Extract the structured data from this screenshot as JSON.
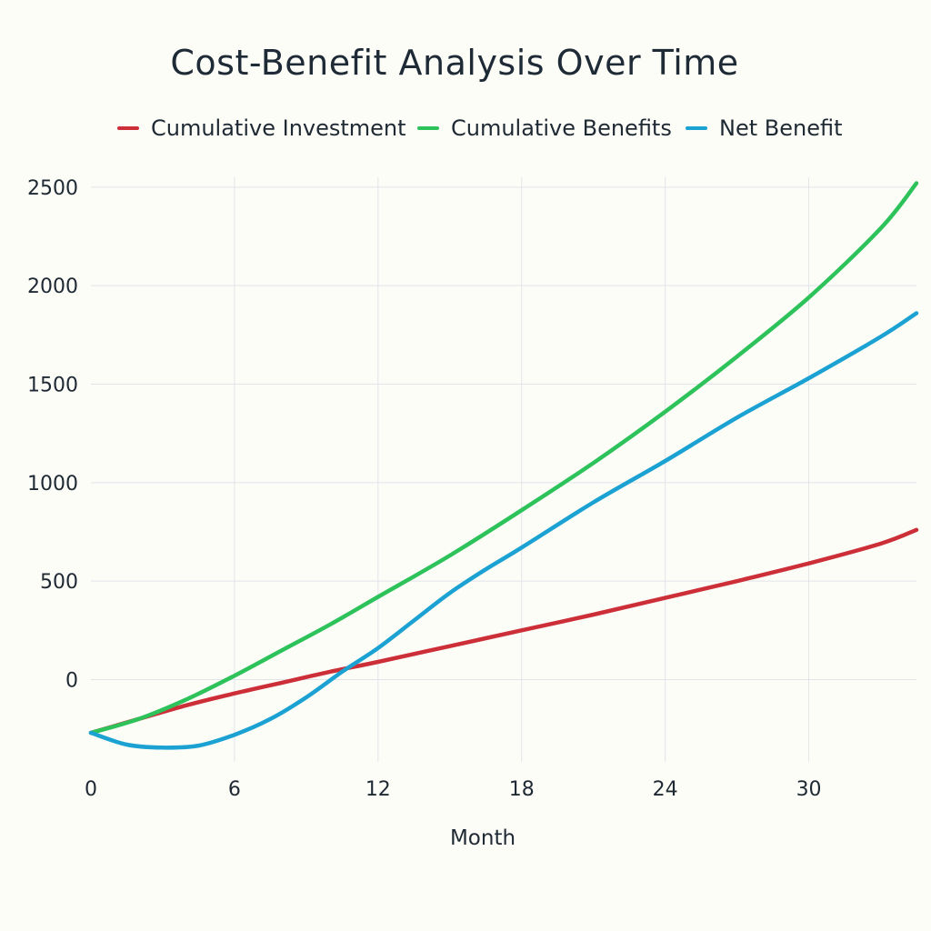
{
  "chart_data": {
    "type": "line",
    "title": "Cost-Benefit Analysis Over Time",
    "xlabel": "Month",
    "ylabel": "",
    "xlim": [
      0,
      34.5
    ],
    "ylim": [
      -450,
      2550
    ],
    "xticks": [
      0,
      6,
      12,
      18,
      24,
      30
    ],
    "yticks": [
      0,
      500,
      1000,
      1500,
      2000,
      2500
    ],
    "grid": true,
    "legend_position": "top",
    "series": [
      {
        "name": "Cumulative Investment",
        "color": "#cc2f37",
        "x": [
          0,
          2,
          4,
          6,
          8,
          10,
          12,
          15,
          18,
          21,
          24,
          27,
          30,
          33,
          34.5
        ],
        "y": [
          -270,
          -200,
          -130,
          -70,
          -15,
          40,
          90,
          170,
          250,
          330,
          415,
          500,
          590,
          690,
          760
        ]
      },
      {
        "name": "Cumulative Benefits",
        "color": "#2ec25b",
        "x": [
          0,
          2,
          4,
          6,
          8,
          10,
          12,
          15,
          18,
          21,
          24,
          27,
          30,
          33,
          34.5
        ],
        "y": [
          -270,
          -200,
          -100,
          20,
          150,
          280,
          420,
          630,
          860,
          1100,
          1360,
          1640,
          1940,
          2290,
          2520
        ]
      },
      {
        "name": "Net Benefit",
        "color": "#1ba2d2",
        "x": [
          0,
          1.5,
          3,
          4.5,
          6,
          7.5,
          9,
          10.5,
          12,
          13.5,
          15,
          16.5,
          18,
          21,
          24,
          27,
          30,
          33,
          34.5
        ],
        "y": [
          -270,
          -330,
          -345,
          -335,
          -280,
          -200,
          -90,
          40,
          160,
          300,
          440,
          560,
          670,
          900,
          1110,
          1330,
          1530,
          1740,
          1860
        ]
      }
    ]
  }
}
